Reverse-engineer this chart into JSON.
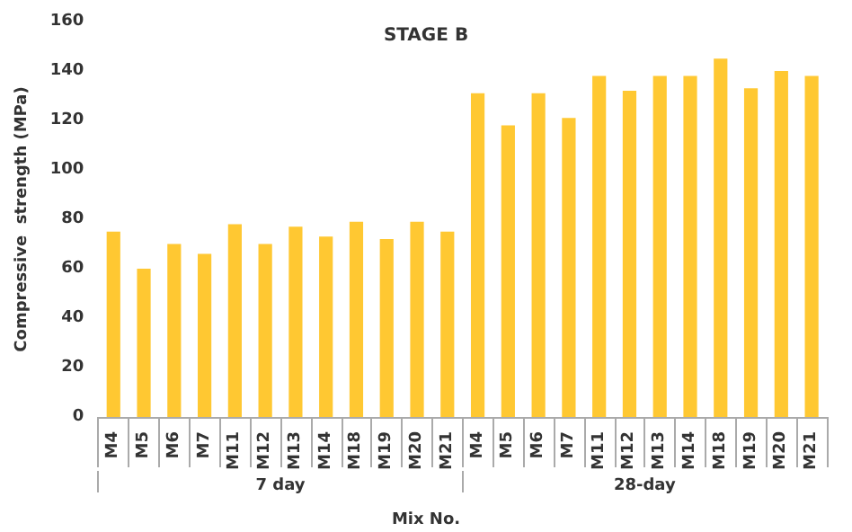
{
  "chart_data": {
    "type": "bar",
    "title": "STAGE B",
    "xlabel": "Mix No.",
    "ylabel": "Compressive  strength (MPa)",
    "categories": [
      "M4",
      "M5",
      "M6",
      "M7",
      "M11",
      "M12",
      "M13",
      "M14",
      "M18",
      "M19",
      "M20",
      "M21",
      "M4",
      "M5",
      "M6",
      "M7",
      "M11",
      "M12",
      "M13",
      "M14",
      "M18",
      "M19",
      "M20",
      "M21"
    ],
    "values": [
      75,
      60,
      70,
      66,
      78,
      70,
      77,
      73,
      79,
      72,
      79,
      75,
      131,
      118,
      131,
      121,
      138,
      132,
      138,
      138,
      145,
      133,
      140,
      138
    ],
    "color": "#ffc832",
    "annotations": [
      "7 day",
      "28-day"
    ],
    "ylim": [
      0,
      160
    ],
    "yticks": [
      0,
      20,
      40,
      60,
      80,
      100,
      120,
      140,
      160
    ],
    "grid": false
  }
}
